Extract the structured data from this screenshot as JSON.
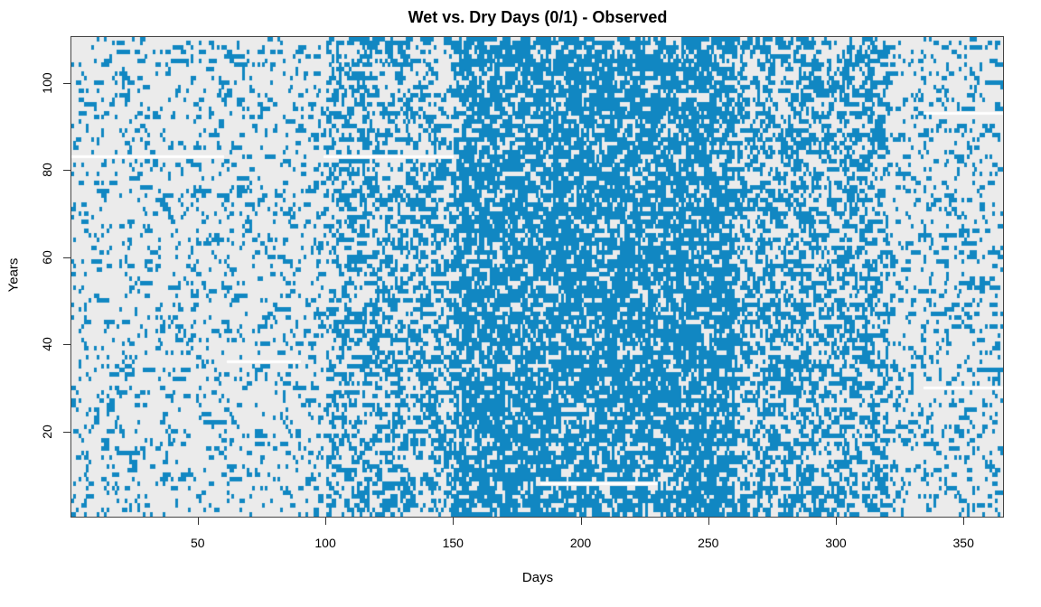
{
  "chart_data": {
    "type": "heatmap",
    "title": "Wet vs. Dry Days (0/1) - Observed",
    "xlabel": "Days",
    "ylabel": "Years",
    "xlim": [
      1,
      365
    ],
    "ylim": [
      1,
      110
    ],
    "x_ticks": [
      50,
      100,
      150,
      200,
      250,
      300,
      350
    ],
    "y_ticks": [
      20,
      40,
      60,
      80,
      100
    ],
    "value_encoding": {
      "0": "dry",
      "1": "wet",
      "missing": "no data"
    },
    "colors": {
      "wet": "#1187c2",
      "dry": "#ebebeb",
      "missing": "#ffffff"
    },
    "wet_probability_by_season": [
      {
        "days": [
          1,
          100
        ],
        "p": 0.12
      },
      {
        "days": [
          101,
          150
        ],
        "p": 0.32
      },
      {
        "days": [
          151,
          260
        ],
        "p": 0.55
      },
      {
        "days": [
          261,
          320
        ],
        "p": 0.35
      },
      {
        "days": [
          321,
          365
        ],
        "p": 0.15
      }
    ],
    "missing_runs": [
      {
        "year": 83,
        "days": [
          1,
          60
        ]
      },
      {
        "year": 83,
        "days": [
          100,
          150
        ]
      },
      {
        "year": 36,
        "days": [
          62,
          90
        ]
      },
      {
        "year": 93,
        "days": [
          335,
          365
        ]
      },
      {
        "year": 30,
        "days": [
          335,
          365
        ]
      },
      {
        "year": 8,
        "days": [
          185,
          230
        ]
      }
    ]
  }
}
